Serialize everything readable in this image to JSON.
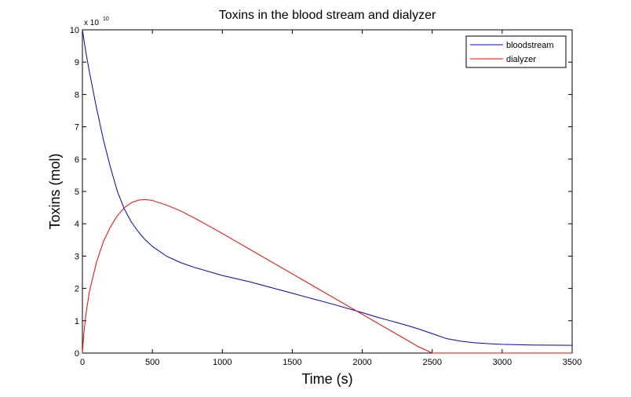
{
  "chart_data": {
    "type": "line",
    "title": "Toxins in the blood stream and dialyzer",
    "xlabel": "Time (s)",
    "ylabel": "Toxins (mol)",
    "y_multiplier": "x 10",
    "y_multiplier_exponent": "10",
    "xlim": [
      0,
      3500
    ],
    "ylim": [
      0,
      10
    ],
    "xticks": [
      0,
      500,
      1000,
      1500,
      2000,
      2500,
      3000,
      3500
    ],
    "yticks": [
      0,
      1,
      2,
      3,
      4,
      5,
      6,
      7,
      8,
      9,
      10
    ],
    "grid": false,
    "legend_position": "top-right",
    "series": [
      {
        "name": "bloodstream",
        "color": "#0000cc",
        "x": [
          0,
          25,
          50,
          100,
          150,
          200,
          250,
          300,
          350,
          400,
          450,
          500,
          600,
          700,
          800,
          1000,
          1200,
          1500,
          1800,
          2000,
          2100,
          2200,
          2300,
          2400,
          2500,
          2600,
          2700,
          2800,
          2900,
          3000,
          3200,
          3500
        ],
        "y": [
          10.0,
          9.3,
          8.7,
          7.6,
          6.6,
          5.75,
          5.0,
          4.45,
          4.05,
          3.75,
          3.5,
          3.3,
          3.0,
          2.8,
          2.65,
          2.4,
          2.2,
          1.85,
          1.5,
          1.25,
          1.12,
          1.0,
          0.88,
          0.75,
          0.6,
          0.45,
          0.37,
          0.32,
          0.29,
          0.27,
          0.25,
          0.24
        ]
      },
      {
        "name": "dialyzer",
        "color": "#ff0000",
        "x": [
          0,
          10,
          25,
          50,
          100,
          150,
          200,
          250,
          300,
          350,
          400,
          450,
          500,
          600,
          700,
          800,
          1000,
          1200,
          1500,
          1800,
          2000,
          2200,
          2400,
          2500,
          2600,
          3000,
          3500
        ],
        "y": [
          0.0,
          0.6,
          1.2,
          1.9,
          2.8,
          3.45,
          3.9,
          4.25,
          4.5,
          4.65,
          4.73,
          4.75,
          4.72,
          4.58,
          4.4,
          4.18,
          3.7,
          3.2,
          2.45,
          1.7,
          1.2,
          0.7,
          0.2,
          0.0,
          0.0,
          0.0,
          0.0
        ]
      }
    ]
  }
}
